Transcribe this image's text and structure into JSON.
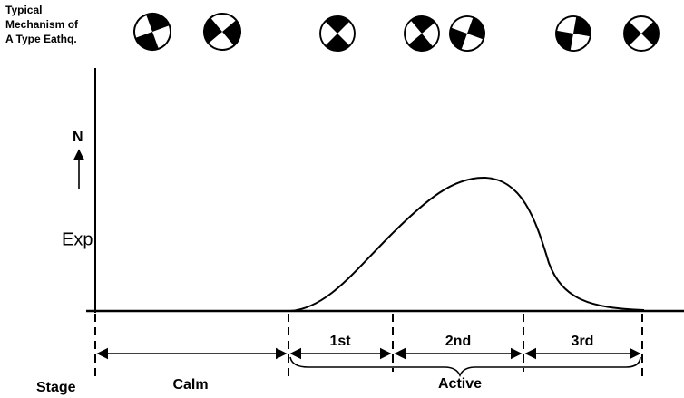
{
  "header": {
    "lines": [
      "Typical",
      "Mechanism of",
      "A Type Eathq."
    ]
  },
  "axis": {
    "y_label": "N",
    "level_label": "Exp"
  },
  "stages": {
    "label": "Stage",
    "calm": "Calm",
    "active": "Active",
    "sub": [
      "1st",
      "2nd",
      "3rd"
    ]
  }
}
